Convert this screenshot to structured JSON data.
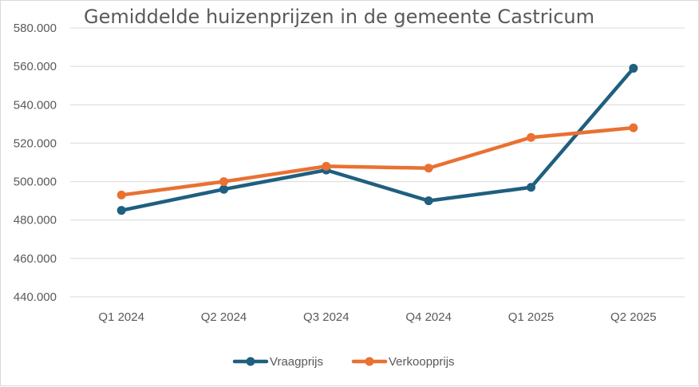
{
  "chart_data": {
    "type": "line",
    "title": "Gemiddelde huizenprijzen in de gemeente Castricum",
    "xlabel": "",
    "ylabel": "",
    "categories": [
      "Q1 2024",
      "Q2 2024",
      "Q3 2024",
      "Q4 2024",
      "Q1 2025",
      "Q2 2025"
    ],
    "ylim": [
      440000,
      580000
    ],
    "yticks": [
      440000,
      460000,
      480000,
      500000,
      520000,
      540000,
      560000,
      580000
    ],
    "ytick_labels": [
      "440.000",
      "460.000",
      "480.000",
      "500.000",
      "520.000",
      "540.000",
      "560.000",
      "580.000"
    ],
    "grid": true,
    "legend_position": "bottom",
    "series": [
      {
        "name": "Vraagprijs",
        "color": "#1f5f7f",
        "values": [
          485000,
          496000,
          506000,
          490000,
          497000,
          559000
        ]
      },
      {
        "name": "Verkoopprijs",
        "color": "#e97132",
        "values": [
          493000,
          500000,
          508000,
          507000,
          523000,
          528000
        ]
      }
    ]
  }
}
